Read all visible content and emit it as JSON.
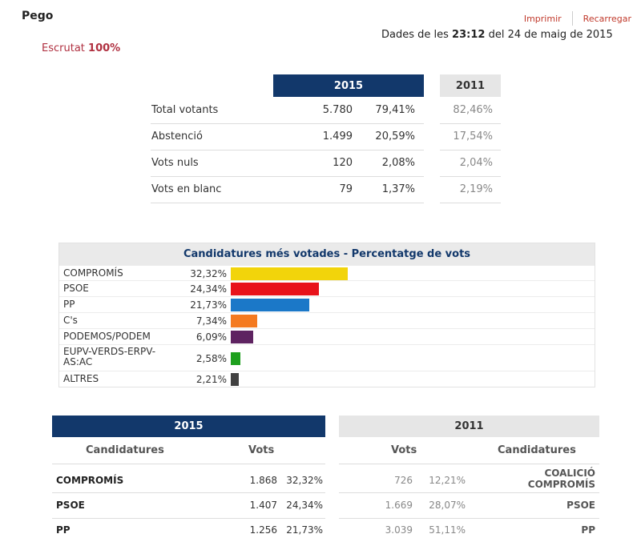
{
  "header": {
    "municipality": "Pego",
    "print_label": "Imprimir",
    "reload_label": "Recarregar",
    "data_prefix": "Dades de les",
    "data_time": "23:12",
    "data_suffix": "del 24 de maig de 2015",
    "escrutat_label": "Escrutat",
    "escrutat_value": "100%"
  },
  "summary": {
    "col_2015": "2015",
    "col_2011": "2011",
    "rows": [
      {
        "label": "Total votants",
        "num": "5.780",
        "pct": "79,41%",
        "old": "82,46%"
      },
      {
        "label": "Abstenció",
        "num": "1.499",
        "pct": "20,59%",
        "old": "17,54%"
      },
      {
        "label": "Vots nuls",
        "num": "120",
        "pct": "2,08%",
        "old": "2,04%"
      },
      {
        "label": "Vots en blanc",
        "num": "79",
        "pct": "1,37%",
        "old": "2,19%"
      }
    ]
  },
  "chart_data": {
    "type": "bar",
    "title": "Candidatures més votades - Percentatge de vots",
    "categories": [
      "COMPROMÍS",
      "PSOE",
      "PP",
      "C's",
      "PODEMOS/PODEM",
      "EUPV-VERDS-ERPV-AS:AC",
      "ALTRES"
    ],
    "labels": [
      "32,32%",
      "24,34%",
      "21,73%",
      "7,34%",
      "6,09%",
      "2,58%",
      "2,21%"
    ],
    "values": [
      32.32,
      24.34,
      21.73,
      7.34,
      6.09,
      2.58,
      2.21
    ],
    "colors": [
      "#f2d40b",
      "#e8131b",
      "#1b78c8",
      "#f47a20",
      "#5e2361",
      "#1ea01e",
      "#404040"
    ],
    "legend": "none",
    "grid": false
  },
  "results": {
    "col_2015": "2015",
    "col_2011": "2011",
    "cand_label": "Candidatures",
    "vots_label": "Vots",
    "rows": [
      {
        "party": "COMPROMÍS",
        "vots": "1.868",
        "pct": "32,32%",
        "vots_2011": "726",
        "pct_2011": "12,21%",
        "party_2011": "COALICIÓ COMPROMÍS"
      },
      {
        "party": "PSOE",
        "vots": "1.407",
        "pct": "24,34%",
        "vots_2011": "1.669",
        "pct_2011": "28,07%",
        "party_2011": "PSOE"
      },
      {
        "party": "PP",
        "vots": "1.256",
        "pct": "21,73%",
        "vots_2011": "3.039",
        "pct_2011": "51,11%",
        "party_2011": "PP"
      }
    ]
  }
}
